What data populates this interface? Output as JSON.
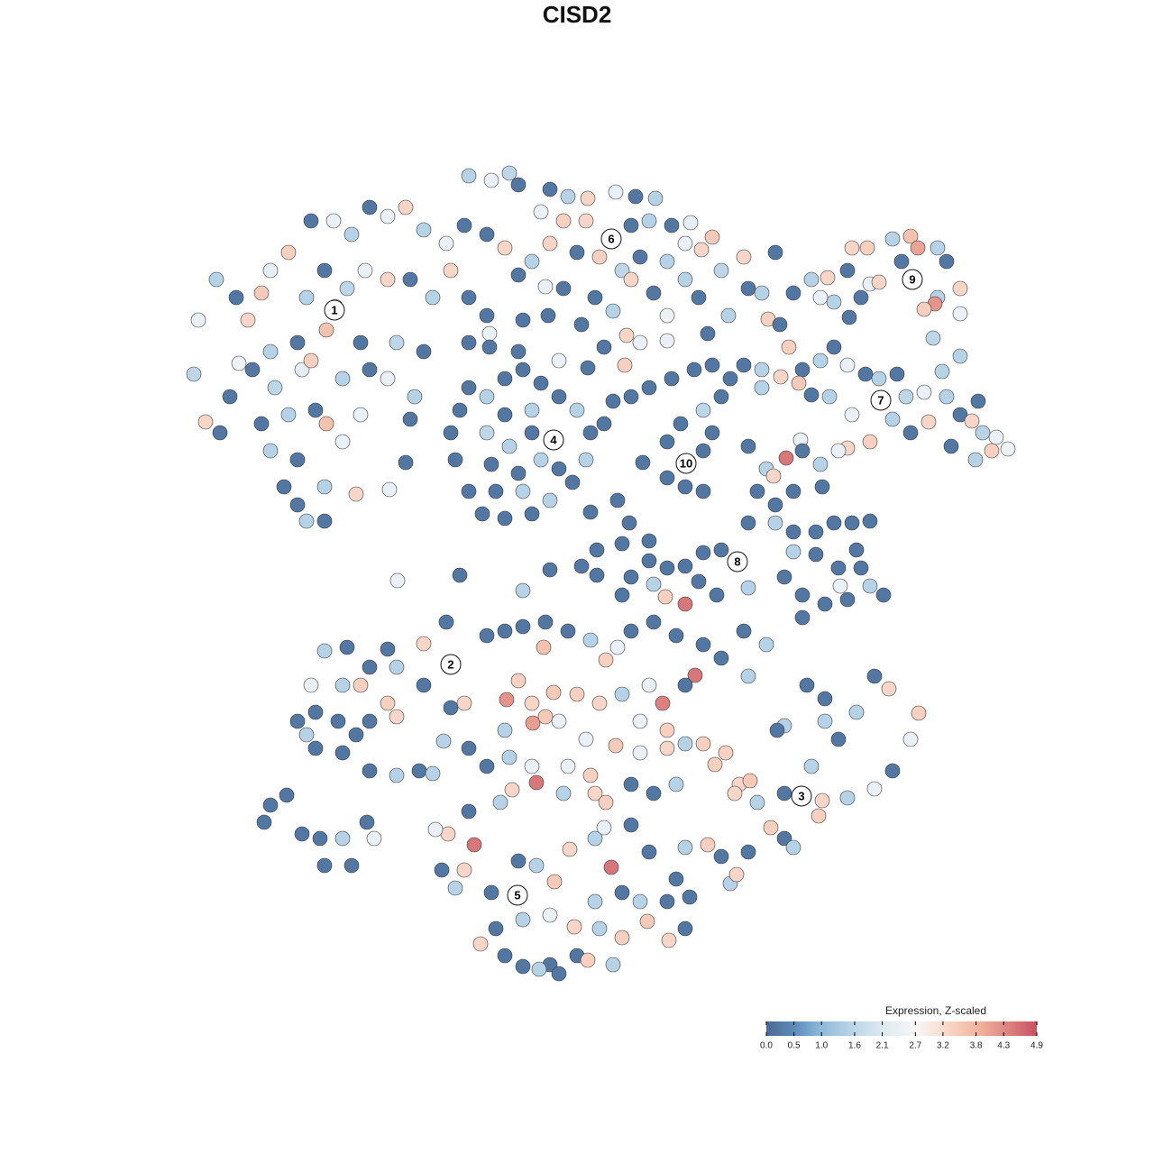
{
  "chart_data": {
    "type": "scatter",
    "title": "CISD2",
    "xlim": [
      0,
      1280
    ],
    "ylim": [
      1280,
      0
    ],
    "x": [
      220,
      215,
      228,
      244,
      240,
      262,
      275,
      290,
      300,
      320,
      345,
      370,
      390,
      410,
      430,
      450,
      470,
      495,
      515,
      500,
      480,
      455,
      430,
      405,
      385,
      360,
      340,
      372,
      362,
      330,
      300,
      280,
      305,
      335,
      345,
      380,
      410,
      430,
      460,
      470,
      440,
      400,
      320,
      350,
      362,
      380,
      400,
      330,
      300,
      290,
      360,
      395,
      432,
      330,
      360,
      340,
      315,
      520,
      540,
      543,
      520,
      265,
      255,
      520,
      545,
      565,
      575,
      610,
      630,
      652,
      683,
      705,
      727,
      600,
      625,
      650,
      680,
      700,
      720,
      745,
      766,
      790,
      778,
      760,
      740,
      710,
      690,
      665,
      640,
      610,
      590,
      560,
      540,
      575,
      605,
      625,
      660,
      700,
      725,
      760,
      800,
      825,
      830,
      845,
      860,
      808,
      852,
      775,
      580,
      608,
      645,
      680,
      695,
      710,
      740,
      785,
      740,
      543,
      575,
      620,
      652,
      693,
      670,
      520,
      540,
      560,
      580,
      600,
      620,
      640,
      655,
      650,
      635,
      610,
      590,
      560,
      535,
      520,
      505,
      500,
      510,
      540,
      565,
      590,
      615,
      600,
      575,
      545,
      560,
      590,
      620,
      580,
      550,
      455,
      450,
      655,
      680,
      700,
      720,
      745,
      770,
      790,
      810,
      800,
      780,
      755,
      740,
      760,
      780,
      790,
      760,
      740,
      780,
      713,
      670,
      825,
      845,
      880,
      900,
      918,
      945,
      962,
      940,
      965,
      990,
      1010,
      1018,
      1040,
      1050,
      1065,
      1040,
      1037,
      1025,
      1065,
      1000,
      975,
      955,
      925,
      910,
      942,
      1035,
      1065,
      865,
      875,
      890,
      910,
      925,
      940,
      960,
      975,
      995,
      1005,
      1025,
      1050,
      1065,
      1078,
      1085,
      1090,
      1100,
      1105,
      1118,
      1082,
      1055,
      1030,
      1010,
      990,
      965,
      940,
      945,
      920,
      900,
      886,
      866,
      845,
      1045,
      888,
      830,
      850,
      858,
      872,
      890,
      910,
      930,
      912,
      880,
      860,
      840,
      830,
      860,
      880,
      905,
      925,
      945,
      965,
      950,
      930,
      905,
      880,
      870,
      890,
      915,
      940,
      965,
      980,
      955,
      932,
      890,
      818,
      800,
      780,
      760,
      740,
      720,
      700,
      725,
      738,
      760,
      775,
      795,
      830,
      690,
      690,
      720,
      698,
      685,
      662,
      645,
      662,
      610,
      580,
      510,
      441,
      300,
      293,
      318,
      335,
      355,
      380,
      360,
      390,
      415,
      407,
      330,
      350,
      375,
      395,
      380,
      350,
      340,
      410,
      440,
      430,
      400,
      380,
      345,
      360,
      385,
      410,
      440,
      470,
      495,
      500,
      470,
      515,
      500,
      430,
      410,
      440,
      465,
      480,
      492,
      540,
      560,
      580,
      605,
      630,
      655,
      685,
      700,
      725,
      750,
      780,
      800,
      825,
      850,
      830,
      771,
      735,
      760,
      720,
      690,
      665,
      640,
      614,
      590,
      562,
      575,
      603,
      672,
      620,
      591,
      605,
      650,
      683,
      710,
      740,
      760,
      780,
      805,
      793,
      820,
      832,
      815,
      840,
      870,
      890,
      912,
      908,
      940,
      970,
      990,
      1010,
      1019,
      986,
      970,
      950,
      915,
      870,
      862,
      895,
      915,
      930,
      900,
      870,
      880,
      855,
      830,
      800,
      785,
      810,
      817,
      760,
      750,
      765,
      720,
      700,
      670,
      678,
      660,
      632,
      615,
      595,
      575,
      574,
      545,
      515,
      497,
      483,
      526,
      505,
      490,
      520,
      555,
      568,
      595,
      625,
      660,
      672,
      700,
      725,
      750,
      540,
      565,
      590,
      520,
      560,
      655,
      630,
      710,
      740,
      533,
      550,
      580,
      610,
      637,
      665,
      690,
      718,
      742,
      760,
      740,
      710,
      690,
      660,
      640,
      652,
      680,
      610,
      580,
      598,
      620,
      560
    ],
    "y": [
      355,
      415,
      468,
      480,
      310,
      330,
      355,
      325,
      300,
      280,
      245,
      245,
      260,
      230,
      240,
      230,
      255,
      270,
      250,
      300,
      330,
      310,
      310,
      300,
      320,
      300,
      330,
      340,
      366,
      380,
      390,
      410,
      430,
      410,
      400,
      420,
      410,
      420,
      440,
      390,
      380,
      380,
      460,
      455,
      470,
      490,
      460,
      510,
      500,
      470,
      540,
      548,
      543,
      560,
      578,
      578,
      540,
      330,
      350,
      370,
      380,
      403,
      440,
      195,
      200,
      192,
      205,
      210,
      218,
      220,
      213,
      218,
      220,
      235,
      245,
      245,
      265,
      250,
      245,
      250,
      247,
      263,
      277,
      270,
      290,
      285,
      300,
      285,
      280,
      270,
      290,
      275,
      260,
      305,
      318,
      320,
      330,
      310,
      325,
      310,
      300,
      285,
      320,
      325,
      280,
      350,
      354,
      330,
      355,
      350,
      360,
      345,
      372,
      380,
      378,
      370,
      350,
      385,
      390,
      400,
      408,
      405,
      385,
      430,
      440,
      420,
      410,
      425,
      440,
      455,
      480,
      510,
      535,
      555,
      570,
      575,
      570,
      545,
      510,
      480,
      455,
      480,
      495,
      480,
      488,
      510,
      525,
      515,
      460,
      455,
      520,
      545,
      545,
      465,
      513,
      568,
      445,
      440,
      430,
      420,
      410,
      405,
      420,
      440,
      455,
      470,
      490,
      515,
      500,
      480,
      540,
      530,
      545,
      513,
      470,
      405,
      430,
      325,
      310,
      308,
      275,
      275,
      300,
      315,
      265,
      262,
      275,
      275,
      290,
      320,
      330,
      337,
      343,
      348,
      290,
      313,
      330,
      335,
      330,
      352,
      375,
      395,
      360,
      385,
      410,
      400,
      385,
      405,
      415,
      420,
      415,
      440,
      435,
      440,
      460,
      467,
      445,
      480,
      500,
      485,
      498,
      510,
      495,
      468,
      480,
      465,
      490,
      497,
      460,
      440,
      438,
      425,
      418,
      410,
      412,
      488,
      495,
      520,
      528,
      508,
      500,
      515,
      500,
      540,
      545,
      560,
      545,
      580,
      580,
      590,
      590,
      580,
      580,
      578,
      610,
      630,
      615,
      612,
      640,
      660,
      670,
      665,
      650,
      660,
      630,
      650,
      685,
      623,
      610,
      613,
      628,
      630,
      622,
      640,
      648,
      662,
      670,
      645,
      660,
      652,
      660,
      603,
      600,
      580,
      555,
      610,
      628,
      638,
      632,
      655,
      638,
      644,
      893,
      912,
      882,
      925,
      930,
      930,
      960,
      960,
      930,
      912,
      800,
      790,
      800,
      815,
      835,
      830,
      815,
      800,
      795,
      780,
      760,
      760,
      760,
      722,
      718,
      740,
      740,
      714,
      690,
      736,
      760,
      780,
      785,
      720,
      855,
      860,
      855,
      858,
      822,
      705,
      700,
      695,
      690,
      700,
      710,
      718,
      700,
      690,
      705,
      715,
      730,
      700,
      715,
      750,
      749,
      780,
      760,
      760,
      770,
      780,
      770,
      768,
      780,
      776,
      755,
      718,
      732,
      800,
      802,
      795,
      820,
      827,
      835,
      830,
      825,
      825,
      835,
      848,
      870,
      866,
      880,
      890,
      880,
      883,
      888,
      905,
      885,
      875,
      855,
      820,
      791,
      764,
      750,
      790,
      800,
      805,
      810,
      760,
      775,
      820,
      850,
      930,
      940,
      918,
      945,
      950,
      937,
      980,
      970,
      940,
      975,
      995,
      945,
      915,
      918,
      962,
      930,
      942,
      978,
      960,
      955,
      993,
      990,
      965,
      925,
      920,
      937,
      985,
      965,
      900,
      890,
      876,
      868,
      880,
      880,
      890,
      870,
      880,
      870,
      850,
      840,
      850,
      830,
      810,
      860,
      850,
      800,
      810,
      1047,
      1030,
      1020,
      1015,
      1028,
      1030,
      1040,
      1022,
      1043,
      1030,
      1000,
      1000,
      990,
      1000,
      1060,
      1065,
      1070,
      1070,
      1072,
      1075,
      1080,
      1060
    ],
    "values": [
      2.4,
      1.6,
      3.3,
      0.2,
      1.5,
      0.2,
      3.3,
      3.5,
      2.3,
      3.4,
      0.2,
      2.4,
      1.5,
      0.2,
      2.4,
      3.3,
      1.5,
      2.4,
      0.2,
      3.3,
      1.5,
      0.2,
      3.3,
      2.4,
      1.6,
      0.2,
      1.5,
      2.4,
      3.6,
      0.2,
      1.5,
      0.2,
      1.6,
      2.3,
      3.4,
      1.5,
      0.2,
      2.4,
      1.5,
      0.2,
      1.6,
      0.2,
      1.5,
      0.2,
      3.6,
      2.4,
      2.4,
      0.2,
      1.5,
      0.2,
      1.5,
      3.3,
      2.4,
      0.2,
      0.2,
      1.5,
      0.2,
      0.2,
      0.2,
      2.4,
      0.2,
      2.5,
      0.2,
      1.5,
      2.4,
      1.6,
      0.2,
      0.2,
      1.5,
      3.3,
      2.4,
      0.2,
      1.5,
      2.4,
      3.4,
      3.3,
      2.4,
      0.2,
      1.5,
      0.2,
      2.3,
      3.5,
      3.3,
      2.4,
      1.5,
      0.2,
      1.6,
      3.4,
      0.2,
      3.3,
      1.5,
      3.3,
      0.2,
      0.2,
      2.4,
      0.2,
      0.2,
      3.3,
      0.2,
      1.5,
      1.6,
      3.3,
      0.2,
      1.5,
      0.2,
      1.5,
      3.4,
      0.2,
      0.2,
      0.2,
      0.2,
      1.5,
      3.3,
      2.4,
      2.4,
      0.2,
      2.5,
      0.2,
      0.2,
      2.4,
      0.2,
      3.4,
      0.2,
      0.2,
      1.5,
      0.2,
      0.2,
      0.2,
      0.2,
      1.5,
      0.2,
      1.5,
      0.2,
      1.5,
      0.2,
      0.2,
      0.2,
      0.2,
      0.2,
      0.2,
      0.2,
      1.6,
      1.5,
      0.2,
      1.6,
      1.5,
      0.2,
      0.2,
      0.2,
      1.5,
      0.2,
      1.5,
      0.2,
      0.2,
      0.2,
      0.2,
      0.2,
      0.2,
      0.2,
      0.2,
      0.2,
      0.2,
      0.2,
      0.2,
      1.6,
      0.2,
      0.2,
      2.4,
      0.2,
      0.2,
      0.2,
      0.2,
      0.2,
      0.2,
      0.2,
      0.2,
      1.5,
      0.2,
      1.5,
      3.3,
      3.3,
      3.4,
      0.2,
      2.4,
      1.5,
      3.6,
      4.0,
      1.5,
      0.2,
      3.3,
      1.5,
      4.2,
      3.4,
      2.4,
      0.2,
      3.3,
      0.2,
      1.5,
      2.4,
      0.2,
      1.6,
      1.5,
      0.2,
      3.4,
      0.2,
      1.5,
      0.2,
      2.4,
      0.2,
      1.5,
      0.2,
      1.6,
      2.4,
      1.5,
      0.2,
      3.3,
      0.2,
      1.5,
      3.4,
      2.4,
      2.5,
      1.5,
      0.2,
      3.3,
      0.2,
      1.5,
      3.4,
      3.3,
      2.4,
      1.5,
      0.2,
      3.5,
      3.3,
      1.5,
      1.5,
      2.4,
      0.2,
      1.5,
      3.3,
      4.5,
      0.2,
      1.5,
      2.4,
      0.2,
      0.2,
      0.2,
      0.2,
      0.2,
      1.5,
      0.2,
      0.2,
      0.2,
      0.2,
      0.2,
      0.2,
      0.2,
      0.2,
      1.5,
      0.2,
      0.2,
      0.2,
      0.2,
      1.5,
      0.2,
      0.2,
      2.4,
      0.2,
      2.4,
      0.2,
      0.2,
      0.2,
      0.2,
      0.2,
      0.2,
      1.5,
      3.4,
      4.5,
      0.2,
      0.2,
      1.5,
      0.2,
      0.2,
      0.2,
      0.2,
      0.2,
      0.2,
      0.2,
      0.2,
      0.2,
      1.5,
      0.2,
      2.4,
      0.2,
      0.2,
      0.2,
      0.2,
      0.2,
      1.5,
      0.2,
      0.2,
      2.4,
      0.2,
      0.2,
      0.2,
      0.2,
      0.2,
      0.2,
      0.2,
      1.5,
      0.2,
      3.3,
      3.4,
      3.4,
      1.5,
      2.4,
      1.5,
      0.2,
      0.2,
      1.5,
      3.3,
      0.2,
      2.4,
      0.2,
      3.3,
      0.2,
      0.2,
      0.2,
      1.5,
      0.2,
      1.5,
      1.5,
      0.2,
      0.2,
      0.2,
      0.2,
      0.2,
      1.5,
      2.4,
      0.2,
      0.2,
      0.2,
      0.2,
      0.2,
      0.2,
      1.5,
      1.5,
      4.5,
      4.4,
      0.2,
      2.4,
      1.5,
      3.3,
      3.4,
      3.5,
      3.3,
      4.2,
      3.4,
      3.6,
      3.4,
      2.4,
      4.1,
      3.5,
      2.4,
      3.5,
      2.4,
      3.3,
      1.5,
      3.4,
      3.4,
      3.4,
      3.3,
      3.5,
      3.3,
      1.5,
      0.2,
      1.5,
      3.3,
      3.4,
      1.5,
      2.4,
      0.2,
      2.4,
      3.4,
      3.3,
      0.2,
      1.5,
      1.5,
      1.5,
      0.2,
      0.2,
      0.2,
      0.2,
      1.5,
      0.2,
      1.5,
      3.4,
      0.2,
      0.2,
      3.4,
      1.5,
      3.3,
      1.5,
      0.2,
      0.2,
      0.2,
      0.2,
      2.4,
      4.5,
      1.5,
      3.3,
      3.5,
      1.5,
      0.2,
      2.4,
      0.2,
      3.3,
      3.3,
      2.4,
      4.5,
      1.5,
      0.2,
      0.2,
      1.5,
      3.3,
      4.5,
      1.5,
      3.3,
      3.4,
      0.2,
      0.2,
      1.5,
      0.2,
      1.5,
      2.4,
      0.2,
      1.5,
      3.4,
      2.4,
      2.4,
      3.4,
      3.3,
      0.2,
      1.5,
      2.4,
      3.3,
      1.5,
      3.4,
      3.5,
      3.3,
      0.2,
      0.2,
      1.5,
      0.2,
      1.5,
      0.2,
      3.4,
      1.5,
      0.2,
      0.2,
      1.5,
      0.2,
      0.2
    ],
    "cluster_labels": [
      {
        "label": "1",
        "x": 371,
        "y": 344
      },
      {
        "label": "2",
        "x": 500,
        "y": 737
      },
      {
        "label": "3",
        "x": 889,
        "y": 883
      },
      {
        "label": "4",
        "x": 614,
        "y": 488
      },
      {
        "label": "5",
        "x": 574,
        "y": 993
      },
      {
        "label": "6",
        "x": 678,
        "y": 265
      },
      {
        "label": "7",
        "x": 977,
        "y": 444
      },
      {
        "label": "8",
        "x": 818,
        "y": 623
      },
      {
        "label": "9",
        "x": 1012,
        "y": 310
      },
      {
        "label": "10",
        "x": 761,
        "y": 514
      }
    ],
    "colorbar": {
      "title": "Expression, Z-scaled",
      "ticks": [
        {
          "value": 0,
          "label": "0.0"
        },
        0.5,
        {
          "value": 1,
          "label": "1.0"
        },
        1.6,
        2.1,
        2.7,
        3.2,
        3.8,
        4.3,
        4.9
      ],
      "colors": [
        "#4a6a92",
        "#5d8bba",
        "#8fbad9",
        "#bdd7e9",
        "#dce9f2",
        "#f7f7f7",
        "#f9dccf",
        "#f2b7a0",
        "#e08b86",
        "#c9505e"
      ]
    }
  }
}
